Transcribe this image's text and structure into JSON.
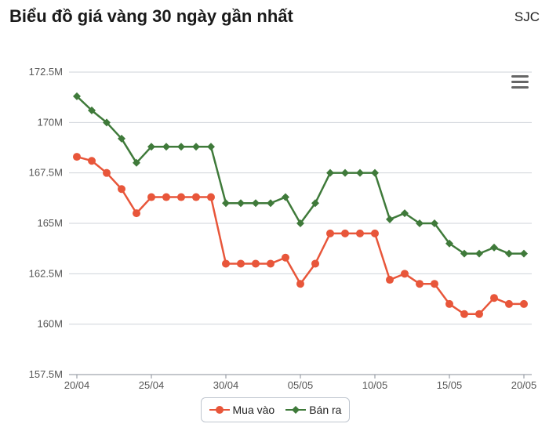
{
  "header": {
    "title": "Biểu đồ giá vàng 30 ngày gần nhất",
    "brand": "SJC"
  },
  "menu": {
    "icon": "hamburger-menu-icon"
  },
  "chart_data": {
    "type": "line",
    "title": "Biểu đồ giá vàng 30 ngày gần nhất",
    "xlabel": "",
    "ylabel": "",
    "x": [
      "20/04",
      "21/04",
      "22/04",
      "23/04",
      "24/04",
      "25/04",
      "26/04",
      "27/04",
      "28/04",
      "29/04",
      "30/04",
      "01/05",
      "02/05",
      "03/05",
      "04/05",
      "05/05",
      "06/05",
      "07/05",
      "08/05",
      "09/05",
      "10/05",
      "11/05",
      "12/05",
      "13/05",
      "14/05",
      "15/05",
      "16/05",
      "17/05",
      "18/05",
      "19/05",
      "20/05"
    ],
    "xtick_labels": [
      "20/04",
      "25/04",
      "30/04",
      "05/05",
      "10/05",
      "15/05",
      "20/05"
    ],
    "xtick_index": [
      0,
      5,
      10,
      15,
      20,
      25,
      30
    ],
    "ylim": [
      157.5,
      172.5
    ],
    "yticks": [
      157.5,
      160,
      162.5,
      165,
      167.5,
      170,
      172.5
    ],
    "ytick_labels": [
      "157.5M",
      "160M",
      "162.5M",
      "165M",
      "167.5M",
      "170M",
      "172.5M"
    ],
    "grid": true,
    "legend_position": "bottom-center",
    "series": [
      {
        "name": "Mua vào",
        "color": "#e8563a",
        "marker": "circle",
        "values": [
          168.3,
          168.1,
          167.5,
          166.7,
          165.5,
          166.3,
          166.3,
          166.3,
          166.3,
          166.3,
          163.0,
          163.0,
          163.0,
          163.0,
          163.3,
          162.0,
          163.0,
          164.5,
          164.5,
          164.5,
          164.5,
          162.2,
          162.5,
          162.0,
          162.0,
          161.0,
          160.5,
          160.5,
          161.3,
          161.0,
          161.0
        ]
      },
      {
        "name": "Bán ra",
        "color": "#3f7a3a",
        "marker": "diamond",
        "values": [
          171.3,
          170.6,
          170.0,
          169.2,
          168.0,
          168.8,
          168.8,
          168.8,
          168.8,
          168.8,
          166.0,
          166.0,
          166.0,
          166.0,
          166.3,
          165.0,
          166.0,
          167.5,
          167.5,
          167.5,
          167.5,
          165.2,
          165.5,
          165.0,
          165.0,
          164.0,
          163.5,
          163.5,
          163.8,
          163.5,
          163.5
        ]
      }
    ]
  }
}
